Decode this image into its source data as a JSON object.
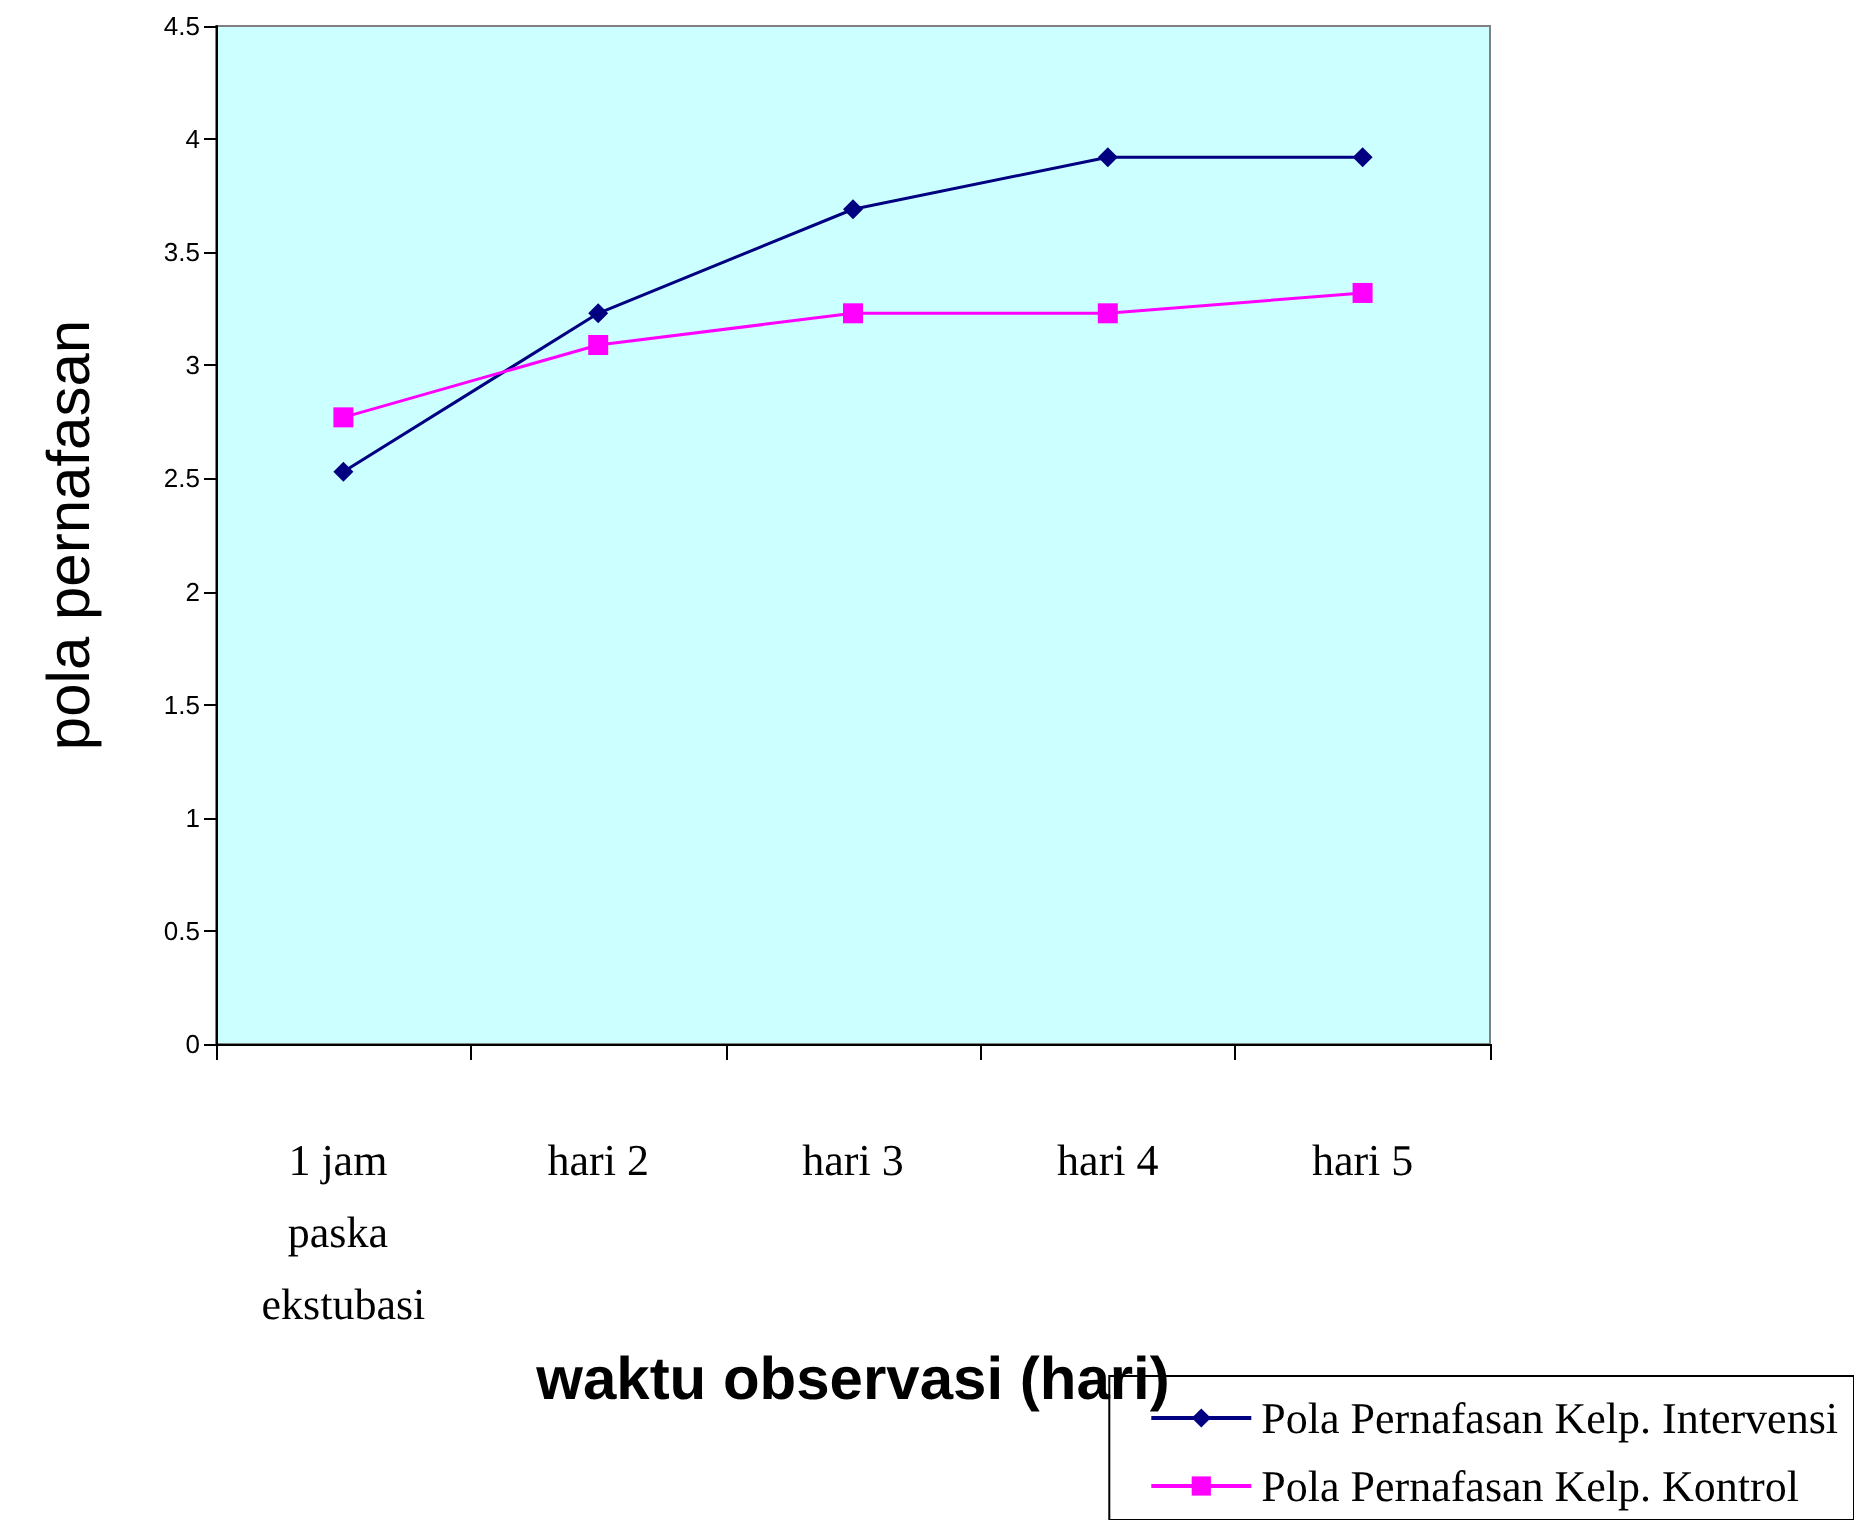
{
  "chart_data": {
    "type": "line",
    "xlabel": "waktu observasi (hari)",
    "ylabel": "pola pernafasan",
    "categories": [
      "1 jam paska ekstubasi",
      "hari 2",
      "hari 3",
      "hari 4",
      "hari 5"
    ],
    "series": [
      {
        "name": "Pola Pernafasan Kelp. Intervensi",
        "color": "#000080",
        "marker": "diamond",
        "values": [
          2.53,
          3.23,
          3.69,
          3.92,
          3.92
        ]
      },
      {
        "name": "Pola Pernafasan Kelp. Kontrol",
        "color": "#ff00ff",
        "marker": "square",
        "values": [
          2.77,
          3.09,
          3.23,
          3.23,
          3.32
        ]
      }
    ],
    "ylim": [
      0,
      4.5
    ],
    "yticks": [
      0,
      0.5,
      1,
      1.5,
      2,
      2.5,
      3,
      3.5,
      4,
      4.5
    ],
    "grid": false,
    "legend": "bottom right",
    "line_style": "solid"
  }
}
